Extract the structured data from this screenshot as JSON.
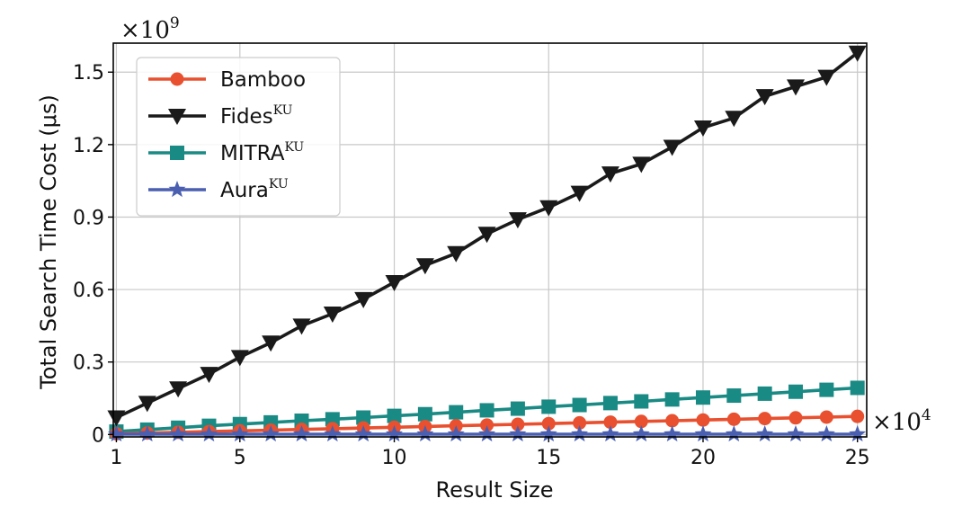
{
  "chart_data": {
    "type": "line",
    "xlabel": "Result Size",
    "ylabel": "Total Search Time Cost (μs)",
    "x_multiplier": {
      "base": "×10",
      "exp": "4"
    },
    "y_multiplier": {
      "base": "×10",
      "exp": "9"
    },
    "xlim": [
      0.9,
      25.3
    ],
    "ylim": [
      -0.01,
      1.62
    ],
    "x_ticks": [
      1,
      5,
      10,
      15,
      20,
      25
    ],
    "y_ticks": [
      0,
      0.3,
      0.6,
      0.9,
      1.2,
      1.5
    ],
    "x_tick_labels": [
      "1",
      "5",
      "10",
      "15",
      "20",
      "25"
    ],
    "y_tick_labels": [
      "0",
      "0.3",
      "0.6",
      "0.9",
      "1.2",
      "1.5"
    ],
    "grid": true,
    "legend_position": "top-left",
    "x": [
      1,
      2,
      3,
      4,
      5,
      6,
      7,
      8,
      9,
      10,
      11,
      12,
      13,
      14,
      15,
      16,
      17,
      18,
      19,
      20,
      21,
      22,
      23,
      24,
      25
    ],
    "series": [
      {
        "name": "Bamboo",
        "sup": "",
        "color": "#e8502f",
        "marker": "circle",
        "values": [
          0.003,
          0.006,
          0.009,
          0.012,
          0.015,
          0.018,
          0.021,
          0.024,
          0.027,
          0.03,
          0.033,
          0.036,
          0.039,
          0.042,
          0.045,
          0.048,
          0.051,
          0.054,
          0.057,
          0.06,
          0.063,
          0.066,
          0.069,
          0.072,
          0.075
        ]
      },
      {
        "name": "Fides",
        "sup": "KU",
        "color": "#1a1a1a",
        "marker": "triangle-down",
        "values": [
          0.07,
          0.13,
          0.19,
          0.25,
          0.32,
          0.38,
          0.45,
          0.5,
          0.56,
          0.63,
          0.7,
          0.75,
          0.83,
          0.89,
          0.94,
          1.0,
          1.08,
          1.12,
          1.19,
          1.27,
          1.31,
          1.4,
          1.44,
          1.48,
          1.58
        ]
      },
      {
        "name": "MITRA",
        "sup": "KU",
        "color": "#1a8a84",
        "marker": "square",
        "values": [
          0.012,
          0.02,
          0.028,
          0.036,
          0.043,
          0.05,
          0.057,
          0.063,
          0.07,
          0.077,
          0.084,
          0.092,
          0.1,
          0.107,
          0.115,
          0.122,
          0.13,
          0.137,
          0.145,
          0.153,
          0.161,
          0.169,
          0.177,
          0.185,
          0.193
        ]
      },
      {
        "name": "Aura",
        "sup": "KU",
        "color": "#4a5fb0",
        "marker": "star",
        "values": [
          0.001,
          0.001,
          0.001,
          0.001,
          0.001,
          0.001,
          0.001,
          0.001,
          0.001,
          0.001,
          0.001,
          0.001,
          0.001,
          0.001,
          0.001,
          0.001,
          0.001,
          0.001,
          0.001,
          0.001,
          0.001,
          0.001,
          0.001,
          0.001,
          0.001
        ]
      }
    ]
  }
}
